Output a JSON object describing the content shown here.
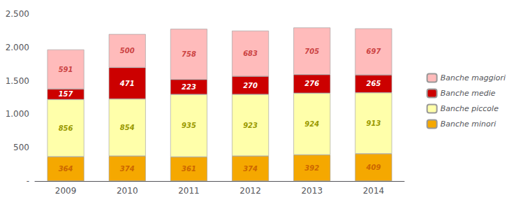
{
  "chart_data": {
    "type": "bar",
    "stacked": true,
    "categories": [
      "2009",
      "2010",
      "2011",
      "2012",
      "2013",
      "2014"
    ],
    "series": [
      {
        "name": "Banche minori",
        "color": "#F5A800",
        "values": [
          364,
          374,
          361,
          374,
          392,
          409
        ]
      },
      {
        "name": "Banche piccole",
        "color": "#FFFFAA",
        "values": [
          856,
          854,
          935,
          923,
          924,
          913
        ]
      },
      {
        "name": "Banche medie",
        "color": "#CC0000",
        "values": [
          157,
          471,
          223,
          270,
          276,
          265
        ]
      },
      {
        "name": "Banche maggiori",
        "color": "#FFBBBB",
        "values": [
          591,
          500,
          758,
          683,
          705,
          697
        ]
      }
    ],
    "ylim": [
      0,
      2500
    ],
    "yticks": [
      {
        "value": 0,
        "label": "-"
      },
      500,
      {
        "value": 1000,
        "label": "1.000"
      },
      {
        "value": 1500,
        "label": "1.500"
      },
      {
        "value": 2000,
        "label": "2.000"
      },
      {
        "value": 2500,
        "label": "2.500"
      }
    ],
    "grid": false,
    "legend": "right",
    "data_labels": true
  }
}
